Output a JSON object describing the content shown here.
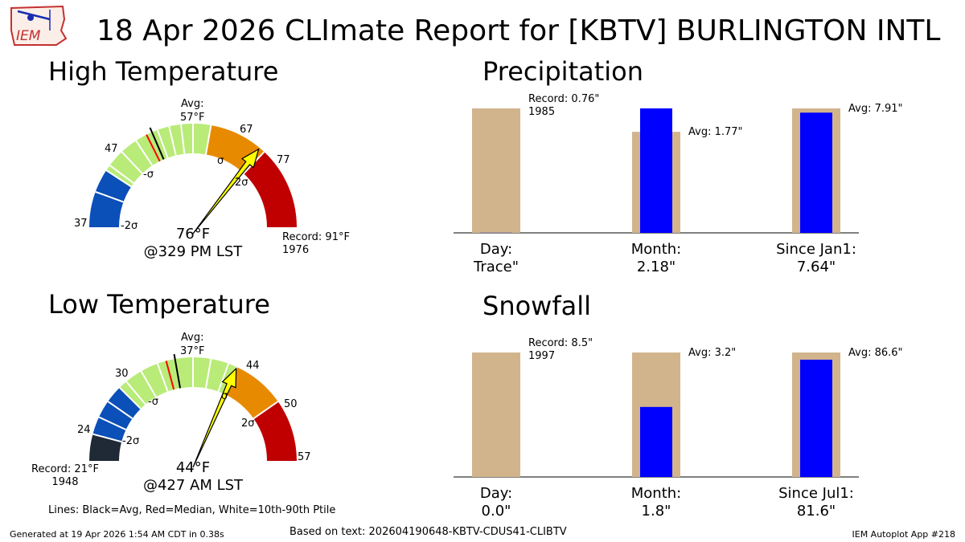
{
  "logo": {
    "text": "IEM"
  },
  "title": "18 Apr 2026 CLImate Report for [KBTV] BURLINGTON INTL",
  "colors": {
    "bar_avg": "#d2b48c",
    "bar_obs": "#0000ff",
    "arrow": "#ffff00",
    "gauge": [
      "#1f2a36",
      "#0b4fb8",
      "#ffffff",
      "#b9eb78",
      "#e88a00",
      "#c00000"
    ],
    "median": "#ff0000",
    "avg": "#000000"
  },
  "high": {
    "heading": "High Temperature",
    "value_label": "76°F",
    "time_label": "@329 PM LST",
    "avg_label": "Avg:",
    "avg_value": "57°F",
    "record_label": "Record: 91°F",
    "record_year": "1976",
    "ticks": [
      "37",
      "47",
      "67",
      "77"
    ],
    "sigma": [
      "-2σ",
      "-σ",
      "σ",
      "2σ"
    ]
  },
  "low": {
    "heading": "Low Temperature",
    "value_label": "44°F",
    "time_label": "@427 AM LST",
    "avg_label": "Avg:",
    "avg_value": "37°F",
    "record_label": "Record: 21°F",
    "record_year": "1948",
    "ticks": [
      "24",
      "30",
      "44",
      "50",
      "57"
    ],
    "sigma": [
      "-2σ",
      "-σ",
      "σ",
      "2σ"
    ]
  },
  "lines_note": "Lines: Black=Avg, Red=Median, White=10th-90th Ptile",
  "chart_data": [
    {
      "type": "gauge",
      "title": "High Temperature",
      "unit": "°F",
      "min": 37,
      "max": 91,
      "observed": 76,
      "average": 57,
      "median": 56,
      "ptile_lines": [
        43,
        48,
        51,
        54,
        58,
        60,
        62,
        64
      ],
      "minus_2sigma": 37,
      "minus_sigma": 47,
      "plus_sigma": 67,
      "plus_2sigma": 77,
      "record": 91,
      "record_year": 1976
    },
    {
      "type": "gauge",
      "title": "Low Temperature",
      "unit": "°F",
      "min": 21,
      "max": 57,
      "observed": 44,
      "average": 37,
      "median": 36,
      "ptile_lines": [
        26,
        28,
        31,
        33,
        35,
        39,
        41,
        43
      ],
      "minus_3sigma": 21,
      "minus_2sigma": 24,
      "minus_sigma": 30,
      "plus_sigma": 44,
      "plus_2sigma": 50,
      "record": 21,
      "record_year": 1948
    },
    {
      "type": "bar",
      "title": "Precipitation",
      "unit": "\"",
      "categories": [
        "Day:",
        "Month:",
        "Since Jan1:"
      ],
      "category_values": [
        "Trace\"",
        "2.18\"",
        "7.64\""
      ],
      "series": [
        {
          "name": "Average",
          "values": [
            0.76,
            1.77,
            7.91
          ]
        },
        {
          "name": "Observed",
          "values": [
            0.001,
            2.18,
            7.64
          ]
        }
      ],
      "annotations": [
        "Record: 0.76\"",
        "1985",
        "Avg: 1.77\"",
        "Avg: 7.91\""
      ]
    },
    {
      "type": "bar",
      "title": "Snowfall",
      "unit": "\"",
      "categories": [
        "Day:",
        "Month:",
        "Since Jul1:"
      ],
      "category_values": [
        "0.0\"",
        "1.8\"",
        "81.6\""
      ],
      "series": [
        {
          "name": "Average",
          "values": [
            8.5,
            3.2,
            86.6
          ]
        },
        {
          "name": "Observed",
          "values": [
            0.0,
            1.8,
            81.6
          ]
        }
      ],
      "annotations": [
        "Record: 8.5\"",
        "1997",
        "Avg: 3.2\"",
        "Avg: 86.6\""
      ]
    }
  ],
  "footer": {
    "generated": "Generated at 19 Apr 2026 1:54 AM CDT in 0.38s",
    "based_on": "Based on text: 202604190648-KBTV-CDUS41-CLIBTV",
    "app": "IEM Autoplot App #218"
  }
}
